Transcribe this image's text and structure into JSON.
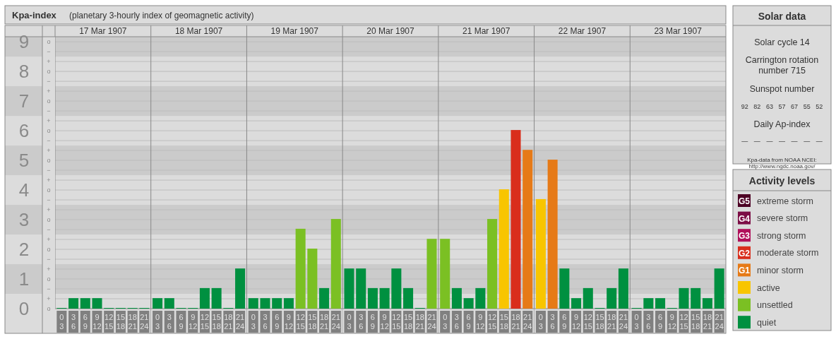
{
  "chart_data": [
    {
      "type": "other",
      "title": "Kpa-index",
      "subtitle": "(planetary 3-hourly index of geomagnetic activity)"
    },
    {
      "type": "bar",
      "title": "17 Mar 1907",
      "categories": [
        "0\n3",
        "3\n6",
        "6\n9",
        "9\n12",
        "12\n15",
        "15\n18",
        "18\n21",
        "21\n24"
      ],
      "values": [
        0,
        0.33,
        0.33,
        0.33,
        0,
        0,
        0,
        0
      ],
      "colors": [
        "#009040",
        "#009040",
        "#009040",
        "#009040",
        "#009040",
        "#009040",
        "#009040",
        "#009040"
      ],
      "ylim": [
        0,
        9.17
      ],
      "yticks": [
        0,
        1,
        2,
        3,
        4,
        5,
        6,
        7,
        8,
        9
      ],
      "grid": true,
      "bands": [
        {
          "axis": "y",
          "from": 0.5,
          "to": 1.5,
          "color": "#cbcbcb"
        },
        {
          "axis": "y",
          "from": 2.5,
          "to": 3.5,
          "color": "#cbcbcb"
        },
        {
          "axis": "y",
          "from": 4.5,
          "to": 5.5,
          "color": "#cbcbcb"
        },
        {
          "axis": "y",
          "from": 6.5,
          "to": 7.5,
          "color": "#cbcbcb"
        },
        {
          "axis": "y",
          "from": 8.5,
          "to": 9.17,
          "color": "#cbcbcb"
        }
      ]
    },
    {
      "type": "bar",
      "title": "18 Mar 1907",
      "categories": [
        "0\n3",
        "3\n6",
        "6\n9",
        "9\n12",
        "12\n15",
        "15\n18",
        "18\n21",
        "21\n24"
      ],
      "values": [
        0.33,
        0.33,
        0,
        0,
        0.67,
        0.67,
        0,
        1.33
      ],
      "colors": [
        "#009040",
        "#009040",
        "#009040",
        "#009040",
        "#009040",
        "#009040",
        "#009040",
        "#009040"
      ],
      "ylim": [
        0,
        9.17
      ],
      "yticks": [
        0,
        1,
        2,
        3,
        4,
        5,
        6,
        7,
        8,
        9
      ],
      "grid": true,
      "tick_labels": "x",
      "bands": [
        {
          "axis": "y",
          "from": 0.5,
          "to": 1.5,
          "color": "#cbcbcb"
        },
        {
          "axis": "y",
          "from": 2.5,
          "to": 3.5,
          "color": "#cbcbcb"
        },
        {
          "axis": "y",
          "from": 4.5,
          "to": 5.5,
          "color": "#cbcbcb"
        },
        {
          "axis": "y",
          "from": 6.5,
          "to": 7.5,
          "color": "#cbcbcb"
        },
        {
          "axis": "y",
          "from": 8.5,
          "to": 9.17,
          "color": "#cbcbcb"
        }
      ]
    },
    {
      "type": "bar",
      "title": "19 Mar 1907",
      "categories": [
        "0\n3",
        "3\n6",
        "6\n9",
        "9\n12",
        "12\n15",
        "15\n18",
        "18\n21",
        "21\n24"
      ],
      "values": [
        0.33,
        0.33,
        0.33,
        0.33,
        2.67,
        2,
        0.67,
        3
      ],
      "colors": [
        "#009040",
        "#009040",
        "#009040",
        "#009040",
        "#7bc023",
        "#7bc023",
        "#009040",
        "#7bc023"
      ],
      "ylim": [
        0,
        9.17
      ],
      "yticks": [
        0,
        1,
        2,
        3,
        4,
        5,
        6,
        7,
        8,
        9
      ],
      "grid": true,
      "tick_labels": "x",
      "bands": [
        {
          "axis": "y",
          "from": 0.5,
          "to": 1.5,
          "color": "#cbcbcb"
        },
        {
          "axis": "y",
          "from": 2.5,
          "to": 3.5,
          "color": "#cbcbcb"
        },
        {
          "axis": "y",
          "from": 4.5,
          "to": 5.5,
          "color": "#cbcbcb"
        },
        {
          "axis": "y",
          "from": 6.5,
          "to": 7.5,
          "color": "#cbcbcb"
        },
        {
          "axis": "y",
          "from": 8.5,
          "to": 9.17,
          "color": "#cbcbcb"
        }
      ]
    },
    {
      "type": "bar",
      "title": "20 Mar 1907",
      "categories": [
        "0\n3",
        "3\n6",
        "6\n9",
        "9\n12",
        "12\n15",
        "15\n18",
        "18\n21",
        "21\n24"
      ],
      "values": [
        1.33,
        1.33,
        0.67,
        0.67,
        1.33,
        0.67,
        0,
        2.33
      ],
      "colors": [
        "#009040",
        "#009040",
        "#009040",
        "#009040",
        "#009040",
        "#009040",
        "#009040",
        "#7bc023"
      ],
      "ylim": [
        0,
        9.17
      ],
      "yticks": [
        0,
        1,
        2,
        3,
        4,
        5,
        6,
        7,
        8,
        9
      ],
      "grid": true,
      "tick_labels": "x",
      "bands": [
        {
          "axis": "y",
          "from": 0.5,
          "to": 1.5,
          "color": "#cbcbcb"
        },
        {
          "axis": "y",
          "from": 2.5,
          "to": 3.5,
          "color": "#cbcbcb"
        },
        {
          "axis": "y",
          "from": 4.5,
          "to": 5.5,
          "color": "#cbcbcb"
        },
        {
          "axis": "y",
          "from": 6.5,
          "to": 7.5,
          "color": "#cbcbcb"
        },
        {
          "axis": "y",
          "from": 8.5,
          "to": 9.17,
          "color": "#cbcbcb"
        }
      ]
    },
    {
      "type": "bar",
      "title": "21 Mar 1907",
      "categories": [
        "0\n3",
        "3\n6",
        "6\n9",
        "9\n12",
        "12\n15",
        "15\n18",
        "18\n21",
        "21\n24"
      ],
      "values": [
        2.33,
        0.67,
        0.33,
        0.67,
        3,
        4,
        6,
        5.33
      ],
      "colors": [
        "#7bc023",
        "#009040",
        "#009040",
        "#009040",
        "#7bc023",
        "#f8c500",
        "#d92e1c",
        "#e67a17"
      ],
      "ylim": [
        0,
        9.17
      ],
      "yticks": [
        0,
        1,
        2,
        3,
        4,
        5,
        6,
        7,
        8,
        9
      ],
      "grid": true,
      "tick_labels": "x",
      "bands": [
        {
          "axis": "y",
          "from": 0.5,
          "to": 1.5,
          "color": "#cbcbcb"
        },
        {
          "axis": "y",
          "from": 2.5,
          "to": 3.5,
          "color": "#cbcbcb"
        },
        {
          "axis": "y",
          "from": 4.5,
          "to": 5.5,
          "color": "#cbcbcb"
        },
        {
          "axis": "y",
          "from": 6.5,
          "to": 7.5,
          "color": "#cbcbcb"
        },
        {
          "axis": "y",
          "from": 8.5,
          "to": 9.17,
          "color": "#cbcbcb"
        }
      ]
    },
    {
      "type": "bar",
      "title": "22 Mar 1907",
      "categories": [
        "0\n3",
        "3\n6",
        "6\n9",
        "9\n12",
        "12\n15",
        "15\n18",
        "18\n21",
        "21\n24"
      ],
      "values": [
        3.67,
        5,
        1.33,
        0.33,
        0.67,
        0,
        0.67,
        1.33
      ],
      "colors": [
        "#f8c500",
        "#e67a17",
        "#009040",
        "#009040",
        "#009040",
        "#009040",
        "#009040",
        "#009040"
      ],
      "ylim": [
        0,
        9.17
      ],
      "yticks": [
        0,
        1,
        2,
        3,
        4,
        5,
        6,
        7,
        8,
        9
      ],
      "grid": true,
      "tick_labels": "x",
      "bands": [
        {
          "axis": "y",
          "from": 0.5,
          "to": 1.5,
          "color": "#cbcbcb"
        },
        {
          "axis": "y",
          "from": 2.5,
          "to": 3.5,
          "color": "#cbcbcb"
        },
        {
          "axis": "y",
          "from": 4.5,
          "to": 5.5,
          "color": "#cbcbcb"
        },
        {
          "axis": "y",
          "from": 6.5,
          "to": 7.5,
          "color": "#cbcbcb"
        },
        {
          "axis": "y",
          "from": 8.5,
          "to": 9.17,
          "color": "#cbcbcb"
        }
      ]
    },
    {
      "type": "bar",
      "title": "23 Mar 1907",
      "categories": [
        "0\n3",
        "3\n6",
        "6\n9",
        "9\n12",
        "12\n15",
        "15\n18",
        "18\n21",
        "21\n24"
      ],
      "values": [
        0,
        0.33,
        0.33,
        0,
        0.67,
        0.67,
        0.33,
        1.33
      ],
      "colors": [
        "#009040",
        "#009040",
        "#009040",
        "#009040",
        "#009040",
        "#009040",
        "#009040",
        "#009040"
      ],
      "ylim": [
        0,
        9.17
      ],
      "yticks": [
        0,
        1,
        2,
        3,
        4,
        5,
        6,
        7,
        8,
        9
      ],
      "grid": true,
      "tick_labels": "x",
      "bands": [
        {
          "axis": "y",
          "from": 0.5,
          "to": 1.5,
          "color": "#cbcbcb"
        },
        {
          "axis": "y",
          "from": 2.5,
          "to": 3.5,
          "color": "#cbcbcb"
        },
        {
          "axis": "y",
          "from": 4.5,
          "to": 5.5,
          "color": "#cbcbcb"
        },
        {
          "axis": "y",
          "from": 6.5,
          "to": 7.5,
          "color": "#cbcbcb"
        },
        {
          "axis": "y",
          "from": 8.5,
          "to": 9.17,
          "color": "#cbcbcb"
        }
      ]
    },
    {
      "type": "other",
      "title": "Solar data",
      "annotations": [
        "Solar cycle 14",
        "Carrington rotation number 715",
        "Sunspot number",
        "92 82 63 57 67 55 52",
        "Daily Ap-index",
        "— — — — — — —",
        "Kpa-data from NOAA NCEI: http://www.ngdc.noaa.gov/"
      ]
    },
    {
      "type": "other",
      "title": "Activity levels",
      "categories": [
        "extreme storm",
        "severe storm",
        "strong storm",
        "moderate storm",
        "minor storm",
        "active",
        "unsettled",
        "quiet"
      ],
      "colors": [
        "#4d0024",
        "#7c0d45",
        "#b0105a",
        "#d92e1c",
        "#e67a17",
        "#f8c500",
        "#7bc023",
        "#009040"
      ],
      "value_labels": [
        "G5",
        "G4",
        "G3",
        "G2",
        "G1",
        null,
        null,
        null
      ]
    },
    {
      "type": "other",
      "categories": [
        "o",
        "−",
        "+",
        "o",
        "−",
        "+",
        "o",
        "−",
        "+",
        "o",
        "−",
        "+",
        "o",
        "−",
        "+",
        "o",
        "−",
        "+",
        "o",
        "−",
        "+",
        "o",
        "−",
        "+",
        "o",
        "−",
        "+",
        "o"
      ]
    }
  ]
}
